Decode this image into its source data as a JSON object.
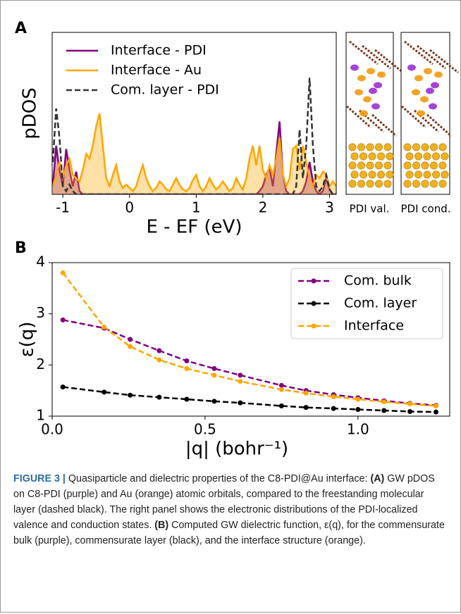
{
  "figure": {
    "panel_labels": [
      "A",
      "B"
    ],
    "image_labels": [
      "PDI val.",
      "PDI cond."
    ]
  },
  "chart_data": [
    {
      "type": "line",
      "xlabel": "E - EF (eV)",
      "ylabel": "pDOS",
      "xlim": [
        -1.16,
        3.1
      ],
      "xticks": [
        -1,
        0,
        1,
        2,
        3
      ],
      "ylim": [
        0,
        1
      ],
      "legend": "upper left",
      "x": [
        -1.15,
        -1.1,
        -1.05,
        -1.0,
        -0.95,
        -0.9,
        -0.85,
        -0.8,
        -0.75,
        -0.7,
        -0.65,
        -0.6,
        -0.55,
        -0.5,
        -0.45,
        -0.4,
        -0.35,
        -0.3,
        -0.25,
        -0.2,
        -0.15,
        -0.1,
        -0.05,
        0,
        0.05,
        0.1,
        0.15,
        0.2,
        0.25,
        0.3,
        0.35,
        0.4,
        0.45,
        0.5,
        0.55,
        0.6,
        0.65,
        0.7,
        0.75,
        0.8,
        0.85,
        0.9,
        0.95,
        1.0,
        1.05,
        1.1,
        1.15,
        1.2,
        1.25,
        1.3,
        1.35,
        1.4,
        1.45,
        1.5,
        1.55,
        1.6,
        1.65,
        1.7,
        1.75,
        1.8,
        1.85,
        1.9,
        1.95,
        2.0,
        2.05,
        2.1,
        2.15,
        2.2,
        2.25,
        2.3,
        2.35,
        2.4,
        2.45,
        2.5,
        2.55,
        2.6,
        2.65,
        2.7,
        2.75,
        2.8,
        2.85,
        2.9,
        2.95,
        3.0,
        3.05,
        3.1
      ],
      "series": [
        {
          "name": "Interface - PDI",
          "color": "#800080",
          "fill": true,
          "linestyle": "solid",
          "values": [
            0.05,
            0.3,
            0.15,
            0.05,
            0.28,
            0.15,
            0.05,
            0.14,
            0.02,
            0,
            0,
            0,
            0,
            0,
            0,
            0,
            0,
            0,
            0,
            0,
            0,
            0,
            0,
            0,
            0,
            0,
            0,
            0,
            0,
            0,
            0,
            0,
            0,
            0,
            0,
            0,
            0,
            0,
            0,
            0,
            0,
            0,
            0,
            0,
            0,
            0,
            0,
            0,
            0,
            0,
            0,
            0,
            0,
            0,
            0,
            0,
            0,
            0,
            0,
            0,
            0,
            0,
            0.02,
            0.05,
            0.12,
            0.16,
            0.05,
            0.25,
            0.45,
            0.12,
            0.02,
            0,
            0,
            0,
            0,
            0.02,
            0.08,
            0.2,
            0.08,
            0.02,
            0,
            0.02,
            0.1,
            0.03,
            0,
            0
          ]
        },
        {
          "name": "Interface - Au",
          "color": "#ffa500",
          "fill": true,
          "linestyle": "solid",
          "values": [
            0.05,
            0.12,
            0.2,
            0.1,
            0.18,
            0.22,
            0.12,
            0.1,
            0.08,
            0.15,
            0.25,
            0.22,
            0.3,
            0.42,
            0.5,
            0.3,
            0.1,
            0.05,
            0.12,
            0.18,
            0.08,
            0.04,
            0.06,
            0.04,
            0.02,
            0.05,
            0.12,
            0.18,
            0.1,
            0.05,
            0.02,
            0.04,
            0.08,
            0.06,
            0.03,
            0.02,
            0.06,
            0.1,
            0.06,
            0.03,
            0.02,
            0.04,
            0.09,
            0.12,
            0.05,
            0.02,
            0.05,
            0.1,
            0.06,
            0.03,
            0.05,
            0.08,
            0.05,
            0.02,
            0.04,
            0.1,
            0.06,
            0.03,
            0.1,
            0.22,
            0.3,
            0.18,
            0.3,
            0.15,
            0.1,
            0.18,
            0.12,
            0.22,
            0.35,
            0.12,
            0.05,
            0.1,
            0.28,
            0.3,
            0.15,
            0.3,
            0.2,
            0.1,
            0.05,
            0.12,
            0.1,
            0.14,
            0.12,
            0.05,
            0.08,
            0.05
          ]
        },
        {
          "name": "Com. layer - PDI",
          "color": "#333333",
          "fill": false,
          "linestyle": "dashed",
          "values": [
            0.2,
            0.53,
            0.35,
            0.05,
            0.02,
            0.06,
            0.02,
            0,
            0,
            0,
            0,
            0,
            0,
            0,
            0,
            0,
            0,
            0,
            0,
            0,
            0,
            0,
            0,
            0,
            0,
            0,
            0,
            0,
            0,
            0,
            0,
            0,
            0,
            0,
            0,
            0,
            0,
            0,
            0,
            0,
            0,
            0,
            0,
            0,
            0,
            0,
            0,
            0,
            0,
            0,
            0,
            0,
            0,
            0,
            0,
            0,
            0,
            0,
            0,
            0,
            0,
            0,
            0,
            0,
            0,
            0,
            0,
            0,
            0,
            0,
            0,
            0,
            0,
            0.05,
            0.4,
            0.1,
            0.3,
            0.72,
            0.3,
            0.05,
            0.02,
            0.05,
            0.12,
            0.03,
            0,
            0
          ]
        }
      ]
    },
    {
      "type": "line",
      "xlabel": "|q| (bohr⁻¹)",
      "ylabel": "ε(q)",
      "xlim": [
        0,
        1.3
      ],
      "xticks": [
        {
          "value": 0,
          "label": "0.0"
        },
        0.5,
        {
          "value": 1,
          "label": "1.0"
        }
      ],
      "ylim": [
        1,
        4
      ],
      "yticks": [
        1,
        2,
        3,
        4
      ],
      "legend": "upper right",
      "markers": true,
      "x": [
        0.035,
        0.17,
        0.255,
        0.35,
        0.44,
        0.53,
        0.615,
        0.75,
        0.83,
        0.92,
        1.0,
        1.085,
        1.17,
        1.255
      ],
      "series": [
        {
          "name": "Com. bulk",
          "color": "#800080",
          "linestyle": "dashed",
          "values": [
            2.88,
            2.72,
            2.5,
            2.28,
            2.08,
            1.93,
            1.8,
            1.6,
            1.5,
            1.42,
            1.36,
            1.3,
            1.25,
            1.21
          ]
        },
        {
          "name": "Com. layer",
          "color": "#000000",
          "linestyle": "dashed",
          "values": [
            1.57,
            1.47,
            1.41,
            1.37,
            1.33,
            1.29,
            1.26,
            1.2,
            1.17,
            1.15,
            1.13,
            1.11,
            1.09,
            1.08
          ]
        },
        {
          "name": "Interface",
          "color": "#ffa500",
          "linestyle": "dashed",
          "values": [
            3.8,
            2.74,
            2.36,
            2.1,
            1.93,
            1.8,
            1.68,
            1.52,
            1.45,
            1.38,
            1.33,
            1.28,
            1.24,
            1.2
          ]
        }
      ]
    }
  ],
  "caption": [
    "FIGURE 3 |",
    " Quasiparticle and dielectric properties of the C8-PDI@Au interface: ",
    "(A)",
    " GW pDOS on C8-PDI (purple) and Au (orange) atomic orbitals, compared to the freestanding molecular layer (dashed black). The right panel shows the electronic distributions of the PDI-localized valence and conduction states. ",
    "(B)",
    " Computed GW dielectric function, ε(q), for the commensurate bulk (purple), commensurate layer (black), and the interface structure (orange)."
  ]
}
